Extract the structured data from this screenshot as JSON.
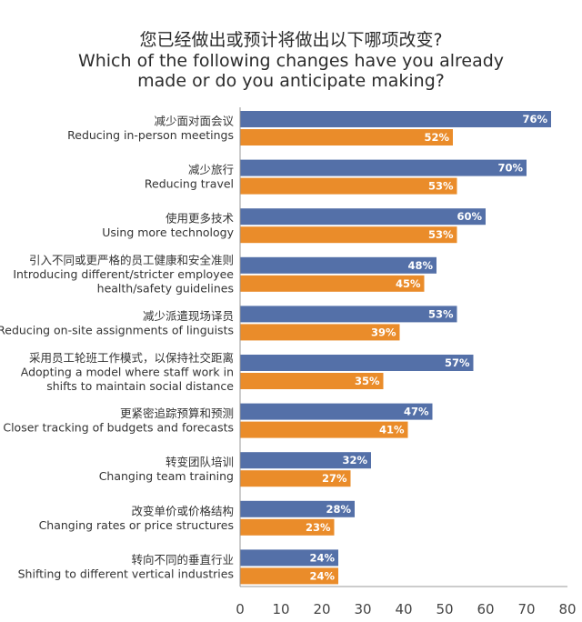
{
  "title": {
    "cn": "您已经做出或预计将做出以下哪项改变?",
    "en_line1": "Which of the following changes have you already",
    "en_line2": "made or do you anticipate making?"
  },
  "colors": {
    "series_a": "#5470a8",
    "series_b": "#ea8c2a",
    "axis": "#999999",
    "grid": "#dddddd"
  },
  "chart_data": {
    "type": "bar",
    "orientation": "horizontal",
    "categories": [
      {
        "cn": "减少面对面会议",
        "en": [
          "Reducing in-person meetings"
        ]
      },
      {
        "cn": "减少旅行",
        "en": [
          "Reducing travel"
        ]
      },
      {
        "cn": "使用更多技术",
        "en": [
          "Using more technology"
        ]
      },
      {
        "cn": "引入不同或更严格的员工健康和安全准则",
        "en": [
          "Introducing different/stricter employee",
          "health/safety guidelines"
        ]
      },
      {
        "cn": "减少派遣现场译员",
        "en": [
          "Reducing on-site assignments of linguists"
        ]
      },
      {
        "cn": "采用员工轮班工作模式，以保持社交距离",
        "en": [
          "Adopting a model where staff work in",
          "shifts to maintain social distance"
        ]
      },
      {
        "cn": "更紧密追踪预算和预测",
        "en": [
          "Closer tracking of budgets and forecasts"
        ]
      },
      {
        "cn": "转变团队培训",
        "en": [
          "Changing team training"
        ]
      },
      {
        "cn": "改变单价或价格结构",
        "en": [
          "Changing rates or price structures"
        ]
      },
      {
        "cn": "转向不同的垂直行业",
        "en": [
          "Shifting to different vertical industries"
        ]
      }
    ],
    "series": [
      {
        "values": [
          76,
          70,
          60,
          48,
          53,
          57,
          47,
          32,
          28,
          24
        ],
        "color": "#5470a8"
      },
      {
        "values": [
          52,
          53,
          53,
          45,
          39,
          35,
          41,
          27,
          23,
          24
        ],
        "color": "#ea8c2a"
      }
    ],
    "value_suffix": "%",
    "xlim": [
      0,
      80
    ],
    "xticks": [
      "0",
      "10",
      "20",
      "30",
      "40",
      "50",
      "60",
      "70",
      "80"
    ],
    "grid": false,
    "legend": "none"
  }
}
